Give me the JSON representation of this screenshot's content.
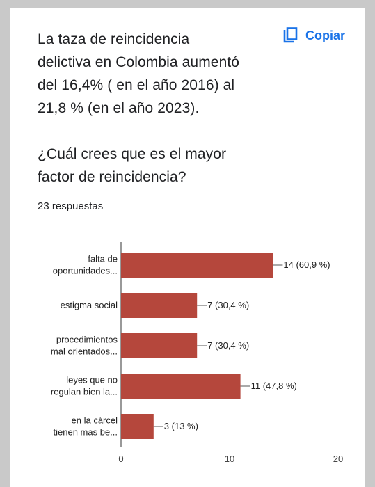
{
  "question": {
    "lines": [
      "La taza de reincidencia",
      "delictiva en Colombia aumentó",
      "del 16,4% ( en el año 2016) al",
      "21,8 % (en el año 2023).",
      "",
      "¿Cuál crees que es el mayor",
      "factor de reincidencia?"
    ]
  },
  "copy": {
    "label": "Copiar",
    "icon": "copy-icon"
  },
  "responses": "23 respuestas",
  "colors": {
    "bar": "#b5473c",
    "accent": "#1a73e8"
  },
  "chart_data": {
    "type": "bar",
    "orientation": "horizontal",
    "categories": [
      [
        "falta de",
        "oportunidades..."
      ],
      [
        "estigma social"
      ],
      [
        "procedimientos",
        "mal orientados..."
      ],
      [
        "leyes que no",
        "regulan bien la..."
      ],
      [
        "en la cárcel",
        "tienen mas be..."
      ]
    ],
    "values": [
      14,
      7,
      7,
      11,
      3
    ],
    "value_labels": [
      "14 (60,9 %)",
      "7 (30,4 %)",
      "7 (30,4 %)",
      "11 (47,8 %)",
      "3 (13 %)"
    ],
    "xlim": [
      0,
      20
    ],
    "xticks": [
      "0",
      "10",
      "20"
    ],
    "grid": false,
    "legend": "none"
  }
}
